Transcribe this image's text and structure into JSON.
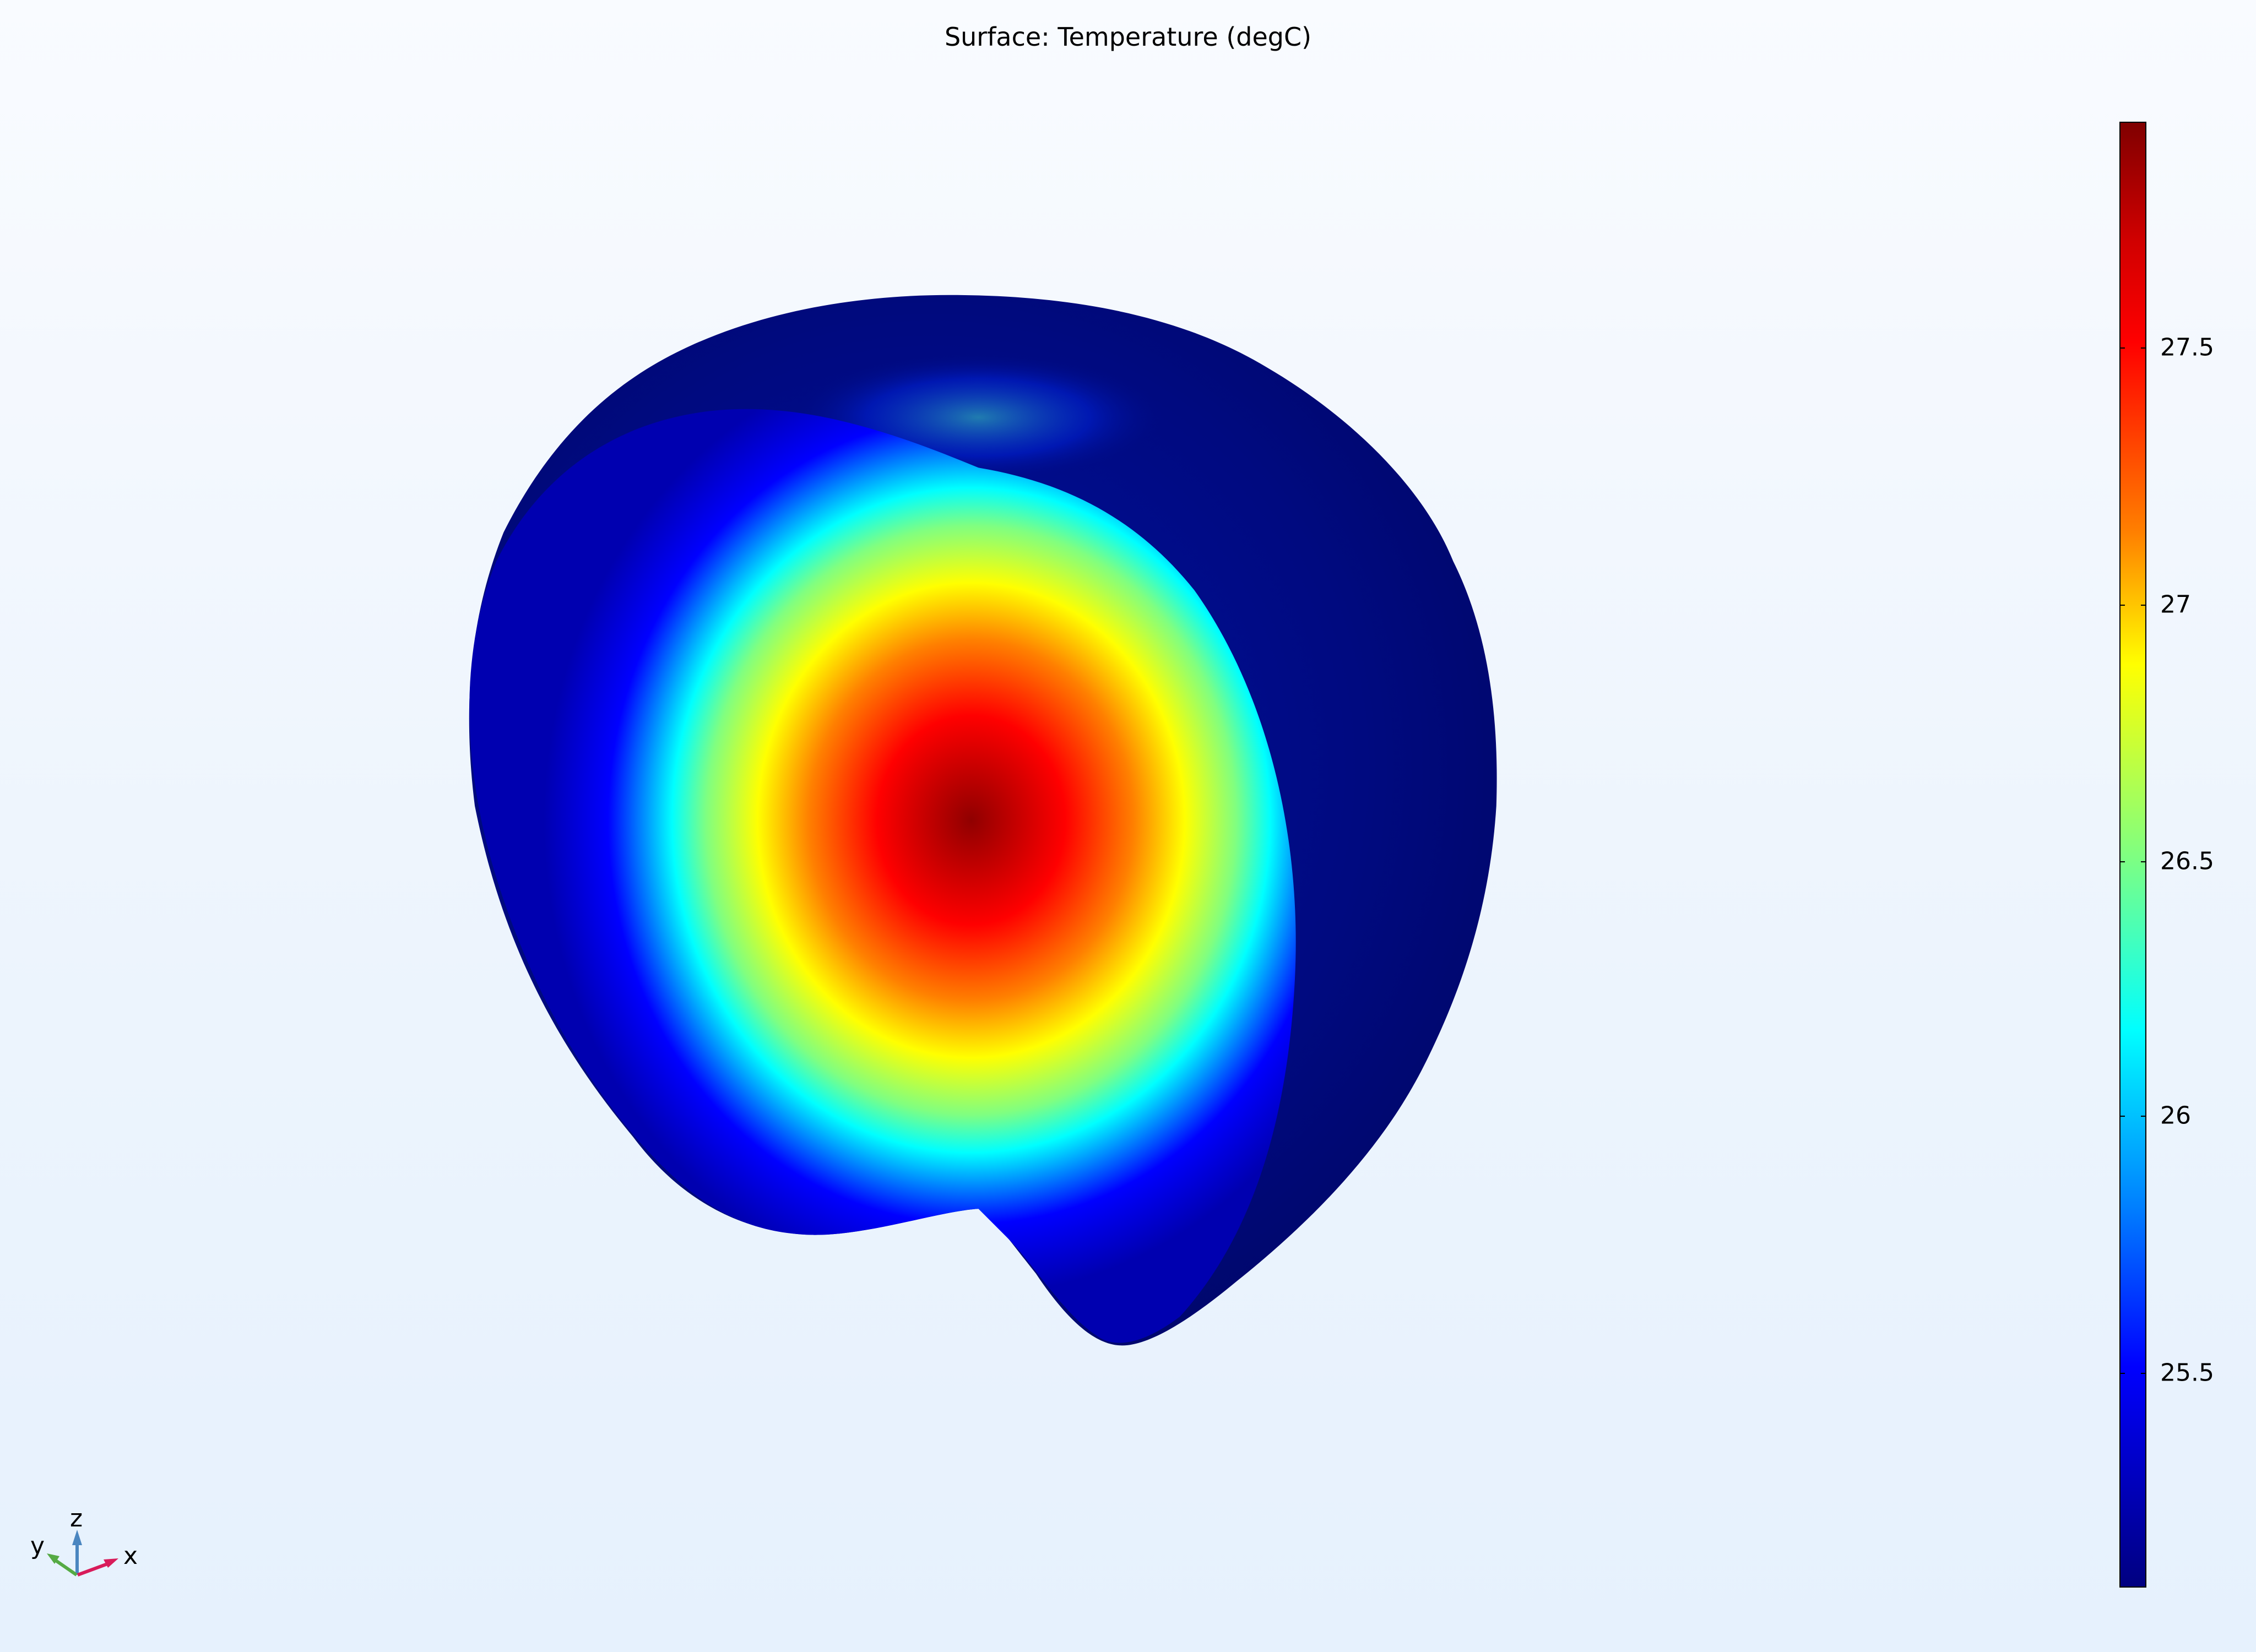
{
  "plot": {
    "title": "Surface: Temperature (degC)",
    "colormap": "rainbow",
    "colors": {
      "max": "#800000",
      "min": "#000080",
      "exterior": "#000a78"
    }
  },
  "colorbar": {
    "range": [
      25.08,
      27.94
    ],
    "ticks": [
      {
        "value": 27.5,
        "label": "27.5"
      },
      {
        "value": 27,
        "label": "27"
      },
      {
        "value": 26.5,
        "label": "26.5"
      },
      {
        "value": 26,
        "label": "26"
      },
      {
        "value": 25.5,
        "label": "25.5"
      }
    ]
  },
  "axes_triad": {
    "x": "x",
    "y": "y",
    "z": "z",
    "colors": {
      "x": "#d81b5a",
      "y": "#55aa44",
      "z": "#4a86c0"
    }
  }
}
